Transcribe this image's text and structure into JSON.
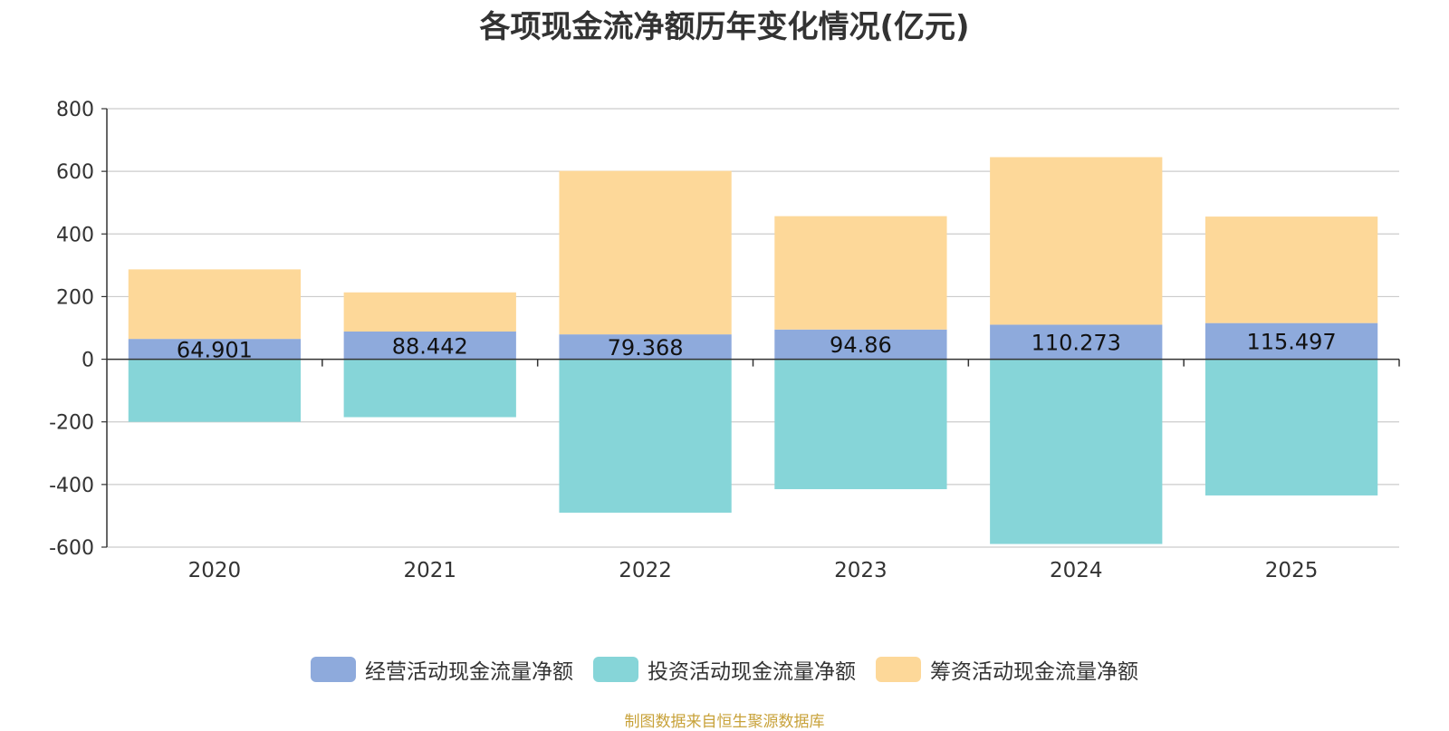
{
  "chart_data": {
    "type": "bar",
    "stacked": true,
    "title": "各项现金流净额历年变化情况(亿元)",
    "categories": [
      "2020",
      "2021",
      "2022",
      "2023",
      "2024",
      "2025"
    ],
    "ylim": [
      -600,
      800
    ],
    "yticks": [
      800,
      600,
      400,
      200,
      0,
      -200,
      -400,
      -600
    ],
    "grid": true,
    "legend_position": "bottom-center",
    "series": [
      {
        "name": "经营活动现金流量净额",
        "color": "#8eaadc",
        "values": [
          64.901,
          88.442,
          79.368,
          94.86,
          110.273,
          115.497
        ],
        "labels": [
          "64.901",
          "88.442",
          "79.368",
          "94.86",
          "110.273",
          "115.497"
        ]
      },
      {
        "name": "投资活动现金流量净额",
        "color": "#86d5d8",
        "values": [
          -200,
          -185,
          -490,
          -415,
          -590,
          -435
        ]
      },
      {
        "name": "筹资活动现金流量净额",
        "color": "#fdd899",
        "values": [
          222,
          125,
          522,
          362,
          535,
          340
        ]
      }
    ],
    "source": "制图数据来自恒生聚源数据库"
  }
}
